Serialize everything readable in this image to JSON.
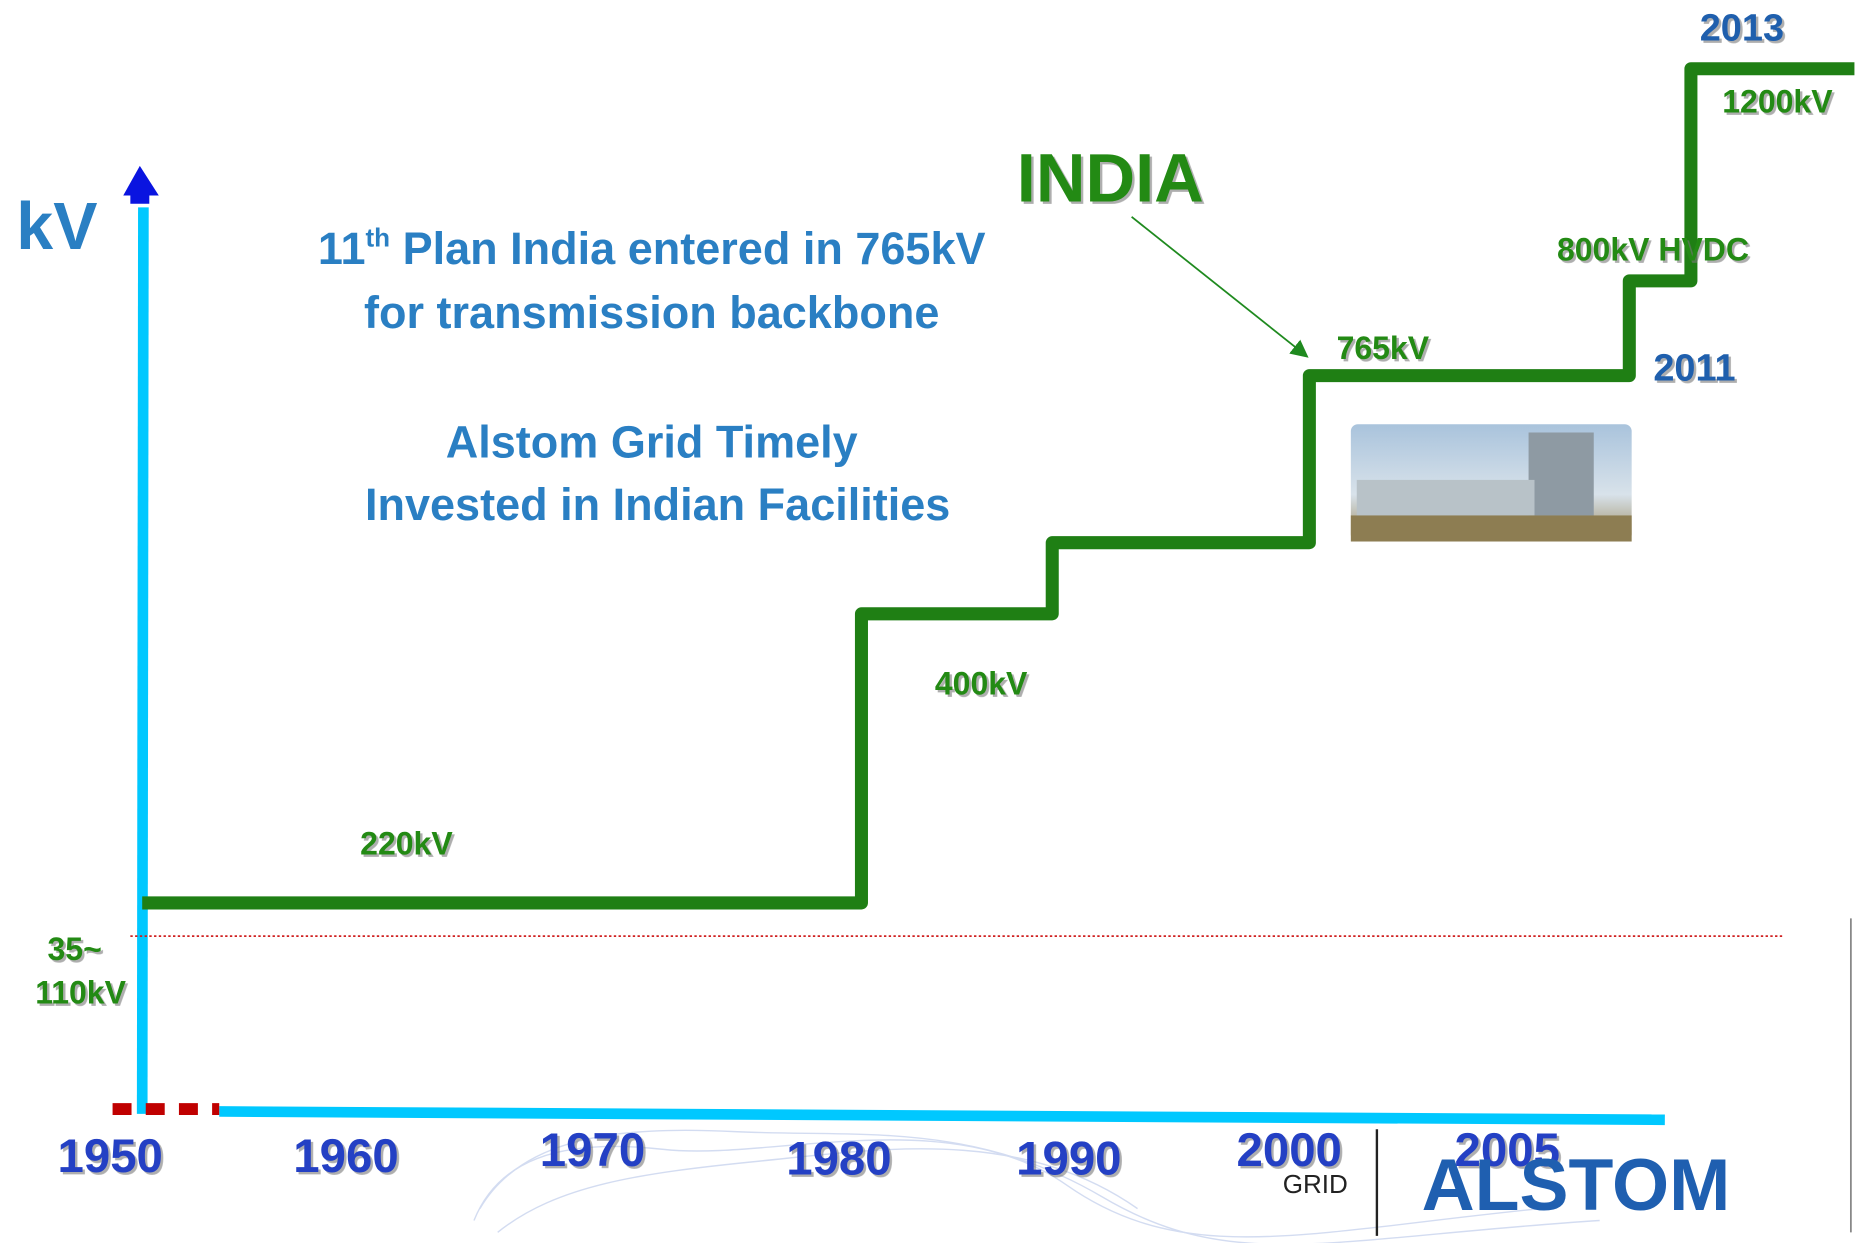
{
  "axis_label": "kV",
  "headline": {
    "lines": [
      {
        "number": "11",
        "suffix": "th",
        "text": " Plan India entered in 765kV"
      },
      {
        "text": "for transmission backbone"
      }
    ]
  },
  "subhead": {
    "lines": [
      "Alstom Grid Timely",
      "Invested in Indian Facilities"
    ]
  },
  "callout": "INDIA",
  "voltage_labels": {
    "base": [
      "35~",
      "110kV"
    ],
    "steps": [
      "220kV",
      "400kV",
      "765kV",
      "800kV HVDC",
      "1200kV"
    ]
  },
  "year_labels": [
    "2011",
    "2013"
  ],
  "years": [
    "1950",
    "1960",
    "1970",
    "1980",
    "1990",
    "2000",
    "2005"
  ],
  "logo": {
    "sub": "GRID",
    "brand": "ALSTOM"
  }
}
